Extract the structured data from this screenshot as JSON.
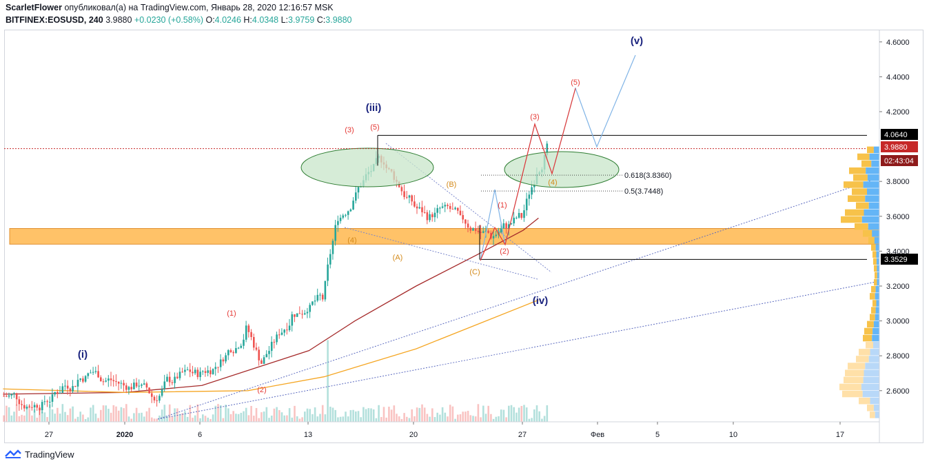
{
  "header": {
    "author": "ScarletFlower",
    "published_text": " опубликовал(а) на TradingView.com, Январь 28, 2020 12:16:57 MSK",
    "symbol": "BITFINEX:EOSUSD, 240",
    "last": "3.9880",
    "change": "+0.0230 (+0.58%)",
    "o_label": "O:",
    "o": "4.0246",
    "h_label": "H:",
    "h": "4.0348",
    "l_label": "L:",
    "l": "3.9759",
    "c_label": "C:",
    "c": "3.9880"
  },
  "footer": {
    "brand": "TradingView"
  },
  "colors": {
    "up": "#26a69a",
    "down": "#ef5350",
    "ma_red": "#a52a2a",
    "ma_orange": "#f5a623",
    "support_zone": "#ffb74d",
    "ellipse": "#c8e6c9",
    "wave_blue": "#7fb3e6",
    "wave_red": "#e53935",
    "label_navy": "#1a237e",
    "label_orange": "#d48a1a"
  },
  "chart_data": {
    "type": "line",
    "title": "",
    "xlabel": "",
    "ylabel": "",
    "ylim": [
      2.4,
      4.7
    ],
    "grid": false,
    "y_ticks": [
      "4.6000",
      "4.4000",
      "4.2000",
      "3.8000",
      "3.6000",
      "3.4000",
      "3.2000",
      "3.0000",
      "2.8000",
      "2.6000"
    ],
    "x_ticks": [
      "27",
      "2020",
      "6",
      "13",
      "20",
      "27",
      "Фев",
      "5",
      "10",
      "17"
    ],
    "price_badges": [
      {
        "text": "4.0640",
        "value": 4.064
      },
      {
        "text": "3.9880",
        "value": 3.988
      },
      {
        "text": "02:43:04",
        "value": 3.9
      },
      {
        "text": "3.3529",
        "value": 3.3529
      }
    ],
    "fib_levels": [
      {
        "text": "0.618(3.8360)",
        "value": 3.836
      },
      {
        "text": "0.5(3.7448)",
        "value": 3.7448
      }
    ],
    "wave_labels": [
      {
        "text": "(i)",
        "style": "navy",
        "x": "2019-12-29",
        "y": 2.8
      },
      {
        "text": "(iii)",
        "style": "navy",
        "x": "2020-01-17",
        "y": 4.22
      },
      {
        "text": "(iv)",
        "style": "navy",
        "x": "2020-01-28",
        "y": 3.1
      },
      {
        "text": "(v)",
        "style": "navy",
        "x": "2020-02-02",
        "y": 4.61
      },
      {
        "text": "(1)",
        "style": "red",
        "x": "2020-01-08",
        "y": 3.04
      },
      {
        "text": "(2)",
        "style": "red",
        "x": "2020-01-09",
        "y": 2.6
      },
      {
        "text": "(3)",
        "style": "red",
        "x": "2020-01-14",
        "y": 4.09
      },
      {
        "text": "(4)",
        "style": "orange",
        "x": "2020-01-15",
        "y": 3.44
      },
      {
        "text": "(5)",
        "style": "red",
        "x": "2020-01-17",
        "y": 4.1
      },
      {
        "text": "(A)",
        "style": "orange",
        "x": "2020-01-19",
        "y": 3.36
      },
      {
        "text": "(B)",
        "style": "orange",
        "x": "2020-01-23",
        "y": 3.78
      },
      {
        "text": "(C)",
        "style": "orange",
        "x": "2020-01-24",
        "y": 3.28
      },
      {
        "text": "(1)",
        "style": "red",
        "x": "2020-01-25",
        "y": 3.66
      },
      {
        "text": "(2)",
        "style": "red",
        "x": "2020-01-25",
        "y": 3.38
      },
      {
        "text": "(3)",
        "style": "red",
        "x": "2020-01-28",
        "y": 4.17
      },
      {
        "text": "(4)",
        "style": "orange",
        "x": "2020-01-29",
        "y": 3.79
      },
      {
        "text": "(5)",
        "style": "red",
        "x": "2020-01-31",
        "y": 4.37
      }
    ],
    "series": [
      {
        "name": "",
        "values": [
          [
            "2019-12-24",
            2.57
          ],
          [
            "2019-12-25",
            2.52
          ],
          [
            "2019-12-26",
            2.55
          ],
          [
            "2019-12-27",
            2.62
          ],
          [
            "2019-12-28",
            2.66
          ],
          [
            "2019-12-29",
            2.71
          ],
          [
            "2019-12-30",
            2.66
          ],
          [
            "2019-12-31",
            2.63
          ],
          [
            "2020-01-01",
            2.64
          ],
          [
            "2020-01-02",
            2.55
          ],
          [
            "2020-01-03",
            2.67
          ],
          [
            "2020-01-04",
            2.7
          ],
          [
            "2020-01-05",
            2.69
          ],
          [
            "2020-01-06",
            2.74
          ],
          [
            "2020-01-07",
            2.85
          ],
          [
            "2020-01-08",
            2.95
          ],
          [
            "2020-01-09",
            2.76
          ],
          [
            "2020-01-10",
            2.9
          ],
          [
            "2020-01-11",
            3.03
          ],
          [
            "2020-01-12",
            3.08
          ],
          [
            "2020-01-13",
            3.13
          ],
          [
            "2020-01-14",
            3.6
          ],
          [
            "2020-01-15",
            3.7
          ],
          [
            "2020-01-16",
            3.85
          ],
          [
            "2020-01-17",
            3.92
          ],
          [
            "2020-01-18",
            3.78
          ],
          [
            "2020-01-19",
            3.66
          ],
          [
            "2020-01-20",
            3.59
          ],
          [
            "2020-01-21",
            3.64
          ],
          [
            "2020-01-22",
            3.58
          ],
          [
            "2020-01-23",
            3.53
          ],
          [
            "2020-01-24",
            3.49
          ],
          [
            "2020-01-25",
            3.55
          ],
          [
            "2020-01-26",
            3.6
          ],
          [
            "2020-01-27",
            3.86
          ],
          [
            "2020-01-28",
            3.988
          ]
        ]
      },
      {
        "name": "",
        "values": [
          [
            "2019-12-24",
            2.58
          ],
          [
            "2020-01-01",
            2.59
          ],
          [
            "2020-01-06",
            2.63
          ],
          [
            "2020-01-13",
            2.83
          ],
          [
            "2020-01-16",
            3.0
          ],
          [
            "2020-01-20",
            3.2
          ],
          [
            "2020-01-24",
            3.38
          ],
          [
            "2020-01-27",
            3.52
          ],
          [
            "2020-01-28",
            3.59
          ]
        ]
      },
      {
        "name": "",
        "values": [
          [
            "2019-12-24",
            2.61
          ],
          [
            "2020-01-01",
            2.59
          ],
          [
            "2020-01-09",
            2.6
          ],
          [
            "2020-01-14",
            2.68
          ],
          [
            "2020-01-20",
            2.84
          ],
          [
            "2020-01-28",
            3.12
          ]
        ]
      }
    ]
  }
}
